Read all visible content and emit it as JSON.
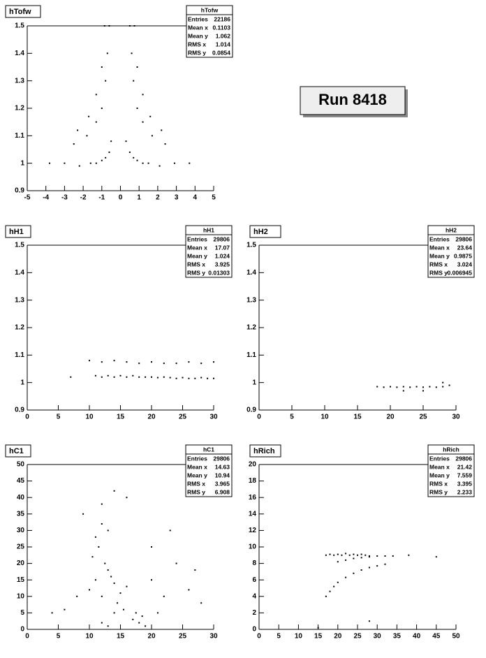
{
  "label": "Run 8418",
  "chart_data": [
    {
      "type": "scatter",
      "title": "hTofw",
      "xlim": [
        -5,
        5
      ],
      "ylim": [
        0.9,
        1.5
      ],
      "xticks": [
        -5,
        -4,
        -3,
        -2,
        -1,
        0,
        1,
        2,
        3,
        4,
        5
      ],
      "yticks": [
        0.9,
        1,
        1.1,
        1.2,
        1.3,
        1.4,
        1.5
      ],
      "stats": [
        {
          "label": "Entries",
          "value": 22186
        },
        {
          "label": "Mean x",
          "value": 0.1103
        },
        {
          "label": "Mean y",
          "value": 1.062
        },
        {
          "label": "RMS x",
          "value": 1.014
        },
        {
          "label": "RMS y",
          "value": 0.0854
        }
      ],
      "x": [
        -0.6,
        -0.7,
        -0.8,
        -1.0,
        -1.3,
        -1.8,
        -2.5,
        -0.85,
        -1.0,
        -1.3,
        -1.7,
        -2.3,
        -0.5,
        -0.6,
        -0.8,
        -1.0,
        -1.3,
        -1.6,
        -2.2,
        -3.0,
        -3.8,
        0.5,
        0.6,
        0.7,
        0.9,
        1.2,
        1.7,
        2.4,
        0.75,
        0.9,
        1.2,
        1.6,
        2.2,
        0.3,
        0.5,
        0.7,
        0.9,
        1.2,
        1.5,
        2.1,
        2.9,
        3.7
      ],
      "y": [
        1.5,
        1.4,
        1.3,
        1.2,
        1.15,
        1.1,
        1.07,
        1.5,
        1.35,
        1.25,
        1.17,
        1.12,
        1.08,
        1.04,
        1.02,
        1.01,
        1.0,
        1.0,
        0.99,
        1.0,
        1.0,
        1.5,
        1.4,
        1.3,
        1.2,
        1.15,
        1.1,
        1.07,
        1.5,
        1.35,
        1.25,
        1.17,
        1.12,
        1.08,
        1.04,
        1.02,
        1.01,
        1.0,
        1.0,
        0.99,
        1.0,
        1.0
      ]
    },
    {
      "type": "scatter",
      "title": "hH1",
      "xlim": [
        0,
        30
      ],
      "ylim": [
        0.9,
        1.5
      ],
      "xticks": [
        0,
        5,
        10,
        15,
        20,
        25,
        30
      ],
      "yticks": [
        0.9,
        1,
        1.1,
        1.2,
        1.3,
        1.4,
        1.5
      ],
      "stats": [
        {
          "label": "Entries",
          "value": 29806
        },
        {
          "label": "Mean x",
          "value": 17.07
        },
        {
          "label": "Mean y",
          "value": 1.024
        },
        {
          "label": "RMS x",
          "value": 3.925
        },
        {
          "label": "RMS y",
          "value": 0.01303
        }
      ],
      "x": [
        11,
        12,
        13,
        14,
        15,
        16,
        17,
        18,
        19,
        20,
        21,
        22,
        23,
        24,
        25,
        26,
        27,
        28,
        29,
        30,
        7,
        10,
        12,
        14,
        16,
        18,
        20,
        22,
        24,
        26,
        28,
        30
      ],
      "y": [
        1.025,
        1.02,
        1.025,
        1.02,
        1.025,
        1.02,
        1.025,
        1.02,
        1.02,
        1.02,
        1.018,
        1.02,
        1.018,
        1.015,
        1.018,
        1.015,
        1.015,
        1.018,
        1.015,
        1.015,
        1.02,
        1.08,
        1.075,
        1.08,
        1.075,
        1.07,
        1.075,
        1.07,
        1.07,
        1.075,
        1.07,
        1.075
      ]
    },
    {
      "type": "scatter",
      "title": "hH2",
      "xlim": [
        0,
        30
      ],
      "ylim": [
        0.9,
        1.5
      ],
      "xticks": [
        0,
        5,
        10,
        15,
        20,
        25,
        30
      ],
      "yticks": [
        0.9,
        1,
        1.1,
        1.2,
        1.3,
        1.4,
        1.5
      ],
      "stats": [
        {
          "label": "Entries",
          "value": 29806
        },
        {
          "label": "Mean x",
          "value": 23.64
        },
        {
          "label": "Mean y",
          "value": 0.9875
        },
        {
          "label": "RMS x",
          "value": 3.024
        },
        {
          "label": "RMS y",
          "value": 0.006945
        }
      ],
      "x": [
        18,
        19,
        20,
        21,
        22,
        23,
        24,
        25,
        26,
        27,
        28,
        29,
        22,
        25,
        28
      ],
      "y": [
        0.985,
        0.983,
        0.985,
        0.983,
        0.985,
        0.983,
        0.985,
        0.983,
        0.985,
        0.983,
        0.985,
        0.99,
        0.97,
        0.97,
        1.0
      ]
    },
    {
      "type": "scatter",
      "title": "hC1",
      "xlim": [
        0,
        30
      ],
      "ylim": [
        0,
        50
      ],
      "xticks": [
        0,
        5,
        10,
        15,
        20,
        25,
        30
      ],
      "yticks": [
        0,
        5,
        10,
        15,
        20,
        25,
        30,
        35,
        40,
        45,
        50
      ],
      "stats": [
        {
          "label": "Entries",
          "value": 29806
        },
        {
          "label": "Mean x",
          "value": 14.63
        },
        {
          "label": "Mean y",
          "value": 10.94
        },
        {
          "label": "RMS x",
          "value": 3.965
        },
        {
          "label": "RMS y",
          "value": 6.908
        }
      ],
      "x": [
        10,
        11,
        12,
        13,
        14,
        15,
        16,
        10.5,
        11.5,
        12.5,
        13.5,
        14.5,
        15.5,
        11,
        12,
        13,
        14,
        12,
        13,
        17,
        18,
        19,
        17.5,
        18.5,
        20,
        22,
        24,
        26,
        28,
        8,
        6,
        4,
        9,
        20,
        23,
        27,
        14,
        16,
        12,
        21
      ],
      "y": [
        12,
        15,
        10,
        18,
        14,
        11,
        13,
        22,
        25,
        20,
        16,
        8,
        6,
        28,
        32,
        30,
        5,
        2,
        1,
        3,
        2,
        1,
        5,
        4,
        15,
        10,
        20,
        12,
        8,
        10,
        6,
        5,
        35,
        25,
        30,
        18,
        42,
        40,
        38,
        5
      ]
    },
    {
      "type": "scatter",
      "title": "hRich",
      "xlim": [
        0,
        50
      ],
      "ylim": [
        0,
        20
      ],
      "xticks": [
        0,
        5,
        10,
        15,
        20,
        25,
        30,
        35,
        40,
        45,
        50
      ],
      "yticks": [
        0,
        2,
        4,
        6,
        8,
        10,
        12,
        14,
        16,
        18,
        20
      ],
      "stats": [
        {
          "label": "Entries",
          "value": 29806
        },
        {
          "label": "Mean x",
          "value": 21.42
        },
        {
          "label": "Mean y",
          "value": 7.559
        },
        {
          "label": "RMS x",
          "value": 3.395
        },
        {
          "label": "RMS y",
          "value": 2.233
        }
      ],
      "x": [
        17,
        18,
        19,
        20,
        21,
        22,
        23,
        24,
        25,
        26,
        27,
        28,
        20,
        22,
        24,
        26,
        28,
        30,
        32,
        34,
        17,
        18,
        19,
        20,
        22,
        24,
        26,
        28,
        30,
        32,
        38,
        45,
        28,
        15
      ],
      "y": [
        9,
        9.1,
        9,
        9.1,
        9,
        9.2,
        9,
        9.1,
        9,
        9.1,
        9,
        8.9,
        8.2,
        8.4,
        8.6,
        8.7,
        8.8,
        8.9,
        8.9,
        8.9,
        4,
        4.6,
        5.2,
        5.7,
        6.3,
        6.8,
        7.2,
        7.5,
        7.7,
        7.9,
        9,
        8.8,
        1,
        0.2
      ]
    }
  ]
}
